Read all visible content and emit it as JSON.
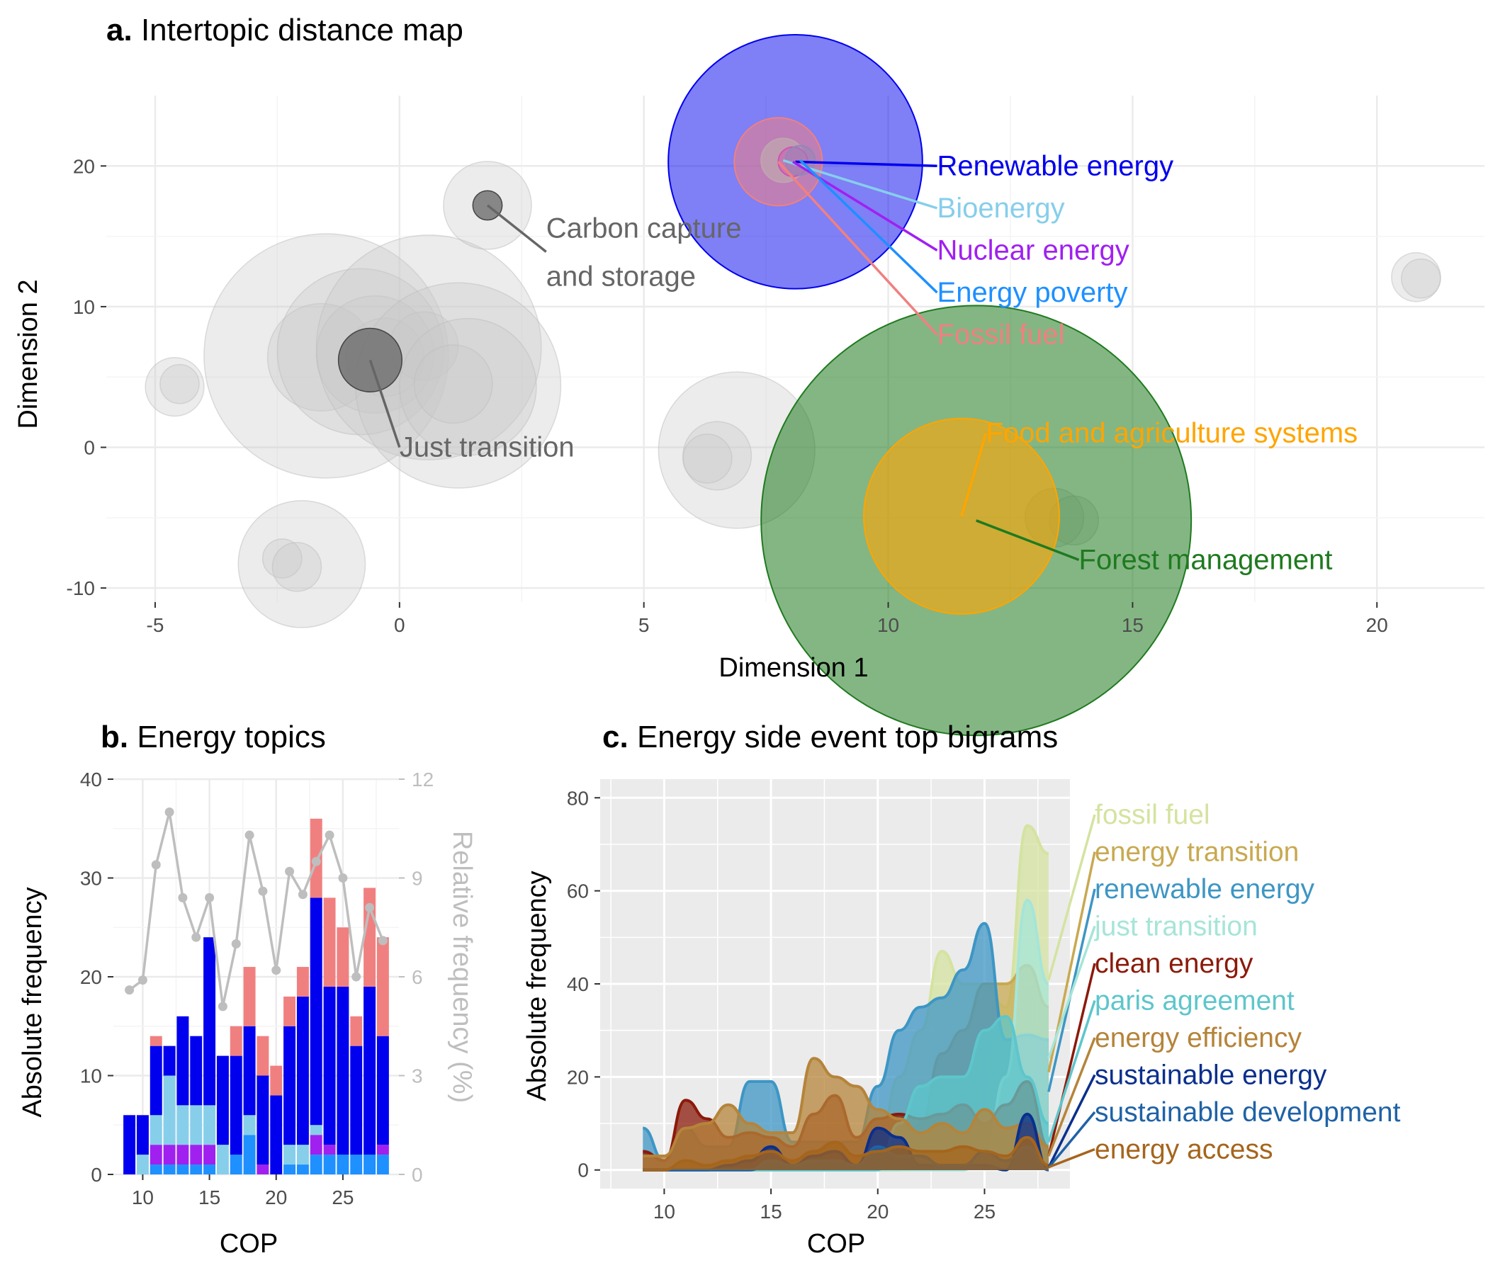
{
  "chart_data": [
    {
      "type": "scatter",
      "panel_label": "a.",
      "title": "Intertopic distance map",
      "xlabel": "Dimension 1",
      "ylabel": "Dimension 2",
      "xlim": [
        -6.0,
        22.2
      ],
      "ylim": [
        -11.0,
        25.0
      ],
      "xticks": [
        -5,
        0,
        5,
        10,
        15,
        20
      ],
      "yticks": [
        -10,
        0,
        10,
        20
      ],
      "xtick_labels": [
        "-5",
        "0",
        "5",
        "10",
        "15",
        "20"
      ],
      "ytick_labels": [
        "-10",
        "0",
        "10",
        "20"
      ],
      "grid": true,
      "background_bubbles": [
        {
          "x": -1.5,
          "y": 6.5,
          "r": 2.5
        },
        {
          "x": -1.6,
          "y": 6.4,
          "r": 1.1
        },
        {
          "x": -0.8,
          "y": 6.8,
          "r": 1.7
        },
        {
          "x": -0.5,
          "y": 6.6,
          "r": 1.2
        },
        {
          "x": -0.3,
          "y": 6.4,
          "r": 0.8
        },
        {
          "x": 0.6,
          "y": 7.1,
          "r": 2.3
        },
        {
          "x": 0.5,
          "y": 7.2,
          "r": 0.7
        },
        {
          "x": 1.2,
          "y": 4.4,
          "r": 2.1
        },
        {
          "x": 1.4,
          "y": 4.3,
          "r": 1.4
        },
        {
          "x": 1.1,
          "y": 4.5,
          "r": 0.8
        },
        {
          "x": -4.6,
          "y": 4.3,
          "r": 0.6
        },
        {
          "x": -4.5,
          "y": 4.5,
          "r": 0.4
        },
        {
          "x": -2.0,
          "y": -8.3,
          "r": 1.3
        },
        {
          "x": -2.4,
          "y": -7.9,
          "r": 0.4
        },
        {
          "x": -2.1,
          "y": -8.5,
          "r": 0.5
        },
        {
          "x": 6.9,
          "y": -0.2,
          "r": 1.6
        },
        {
          "x": 6.5,
          "y": -0.6,
          "r": 0.7
        },
        {
          "x": 6.3,
          "y": -0.8,
          "r": 0.5
        },
        {
          "x": 13.4,
          "y": -5.0,
          "r": 0.6
        },
        {
          "x": 13.8,
          "y": -5.2,
          "r": 0.5
        },
        {
          "x": 20.8,
          "y": 12.1,
          "r": 0.5
        },
        {
          "x": 20.9,
          "y": 12.0,
          "r": 0.4
        },
        {
          "x": 1.8,
          "y": 17.2,
          "r": 0.9
        }
      ],
      "highlighted_topics": [
        {
          "name": "Renewable energy",
          "x": 8.1,
          "y": 20.3,
          "r": 2.6,
          "color": "#0000ee",
          "fill_alpha": 0.5,
          "label_x": 11.0,
          "label_y": 20.0
        },
        {
          "name": "Bioenergy",
          "x": 7.85,
          "y": 20.4,
          "r": 0.45,
          "color": "#87ceeb",
          "fill_alpha": 0.8,
          "label_x": 11.0,
          "label_y": 17.0
        },
        {
          "name": "Nuclear energy",
          "x": 8.05,
          "y": 20.3,
          "r": 0.3,
          "color": "#a020f0",
          "fill_alpha": 0.5,
          "label_x": 11.0,
          "label_y": 14.0
        },
        {
          "name": "Energy poverty",
          "x": 8.2,
          "y": 20.4,
          "r": 0.3,
          "color": "#1e90ff",
          "fill_alpha": 0.5,
          "label_x": 11.0,
          "label_y": 11.0
        },
        {
          "name": "Fossil fuel",
          "x": 7.75,
          "y": 20.3,
          "r": 0.9,
          "color": "#f08080",
          "fill_alpha": 0.55,
          "label_x": 11.0,
          "label_y": 8.0
        },
        {
          "name": "Forest management",
          "x": 11.8,
          "y": -5.2,
          "r": 4.4,
          "color": "#1f7a1f",
          "fill_alpha": 0.55,
          "label_x": 13.9,
          "label_y": -8.0
        },
        {
          "name": "Food and agriculture systems",
          "x": 11.5,
          "y": -4.9,
          "r": 2.0,
          "color": "#ffa500",
          "fill_alpha": 0.6,
          "label_x": 12.0,
          "label_y": 1.0
        }
      ],
      "labeled_gray_topics": [
        {
          "name": "Carbon capture\nand storage",
          "x": 1.8,
          "y": 17.2,
          "r": 0.3,
          "color": "#666666",
          "label_x": 3.0,
          "label_y": 13.9
        },
        {
          "name": "Just transition",
          "x": -0.6,
          "y": 6.2,
          "r": 0.65,
          "color": "#666666",
          "label_x": 0.0,
          "label_y": 0.0
        }
      ]
    },
    {
      "type": "bar",
      "panel_label": "b.",
      "title": "Energy topics",
      "xlabel": "COP",
      "ylabel": "Absolute frequency",
      "y2label": "Relative frequency (%)",
      "x": [
        9,
        10,
        11,
        12,
        13,
        14,
        15,
        16,
        17,
        18,
        19,
        20,
        21,
        22,
        23,
        24,
        25,
        26,
        27,
        28
      ],
      "xlim": [
        7.8,
        29.2
      ],
      "ylim": [
        0,
        40
      ],
      "y2lim": [
        0,
        12
      ],
      "xticks": [
        10,
        15,
        20,
        25
      ],
      "xtick_labels": [
        "10",
        "15",
        "20",
        "25"
      ],
      "yticks": [
        0,
        10,
        20,
        30,
        40
      ],
      "ytick_labels": [
        "0",
        "10",
        "20",
        "30",
        "40"
      ],
      "y2ticks": [
        0,
        3,
        6,
        9,
        12
      ],
      "y2tick_labels": [
        "0",
        "3",
        "6",
        "9",
        "12"
      ],
      "stack_order": [
        "Energy poverty",
        "Nuclear energy",
        "Bioenergy",
        "Renewable energy",
        "Fossil fuel"
      ],
      "series": [
        {
          "name": "Energy poverty",
          "color": "#1e90ff",
          "values": [
            0,
            0,
            1,
            1,
            1,
            1,
            1,
            0,
            2,
            4,
            0,
            0,
            1,
            1,
            2,
            2,
            2,
            2,
            2,
            2
          ]
        },
        {
          "name": "Nuclear energy",
          "color": "#a020f0",
          "values": [
            0,
            0,
            2,
            2,
            2,
            2,
            2,
            0,
            0,
            0,
            1,
            0,
            0,
            0,
            2,
            1,
            0,
            0,
            0,
            1
          ]
        },
        {
          "name": "Bioenergy",
          "color": "#87ceeb",
          "values": [
            0,
            2,
            3,
            7,
            4,
            4,
            4,
            3,
            0,
            2,
            0,
            0,
            2,
            2,
            1,
            0,
            0,
            0,
            0,
            0
          ]
        },
        {
          "name": "Renewable energy",
          "color": "#0000ee",
          "values": [
            6,
            4,
            7,
            3,
            9,
            7,
            17,
            9,
            10,
            9,
            9,
            8,
            12,
            15,
            23,
            16,
            17,
            11,
            17,
            11
          ]
        },
        {
          "name": "Fossil fuel",
          "color": "#f08080",
          "values": [
            0,
            0,
            1,
            0,
            0,
            0,
            0,
            0,
            3,
            6,
            4,
            3,
            3,
            3,
            8,
            9,
            6,
            3,
            10,
            10
          ]
        }
      ],
      "relative_frequency": {
        "color": "#bebebe",
        "values": [
          5.6,
          5.9,
          9.4,
          11.0,
          8.4,
          7.2,
          8.4,
          5.1,
          7.0,
          10.3,
          8.6,
          6.2,
          9.2,
          8.5,
          9.5,
          10.3,
          9.0,
          6.0,
          8.1,
          7.1
        ]
      }
    },
    {
      "type": "area",
      "panel_label": "c.",
      "title": "Energy side event top bigrams",
      "xlabel": "COP",
      "ylabel": "Absolute frequency",
      "x": [
        9,
        10,
        11,
        12,
        13,
        14,
        15,
        16,
        17,
        18,
        19,
        20,
        21,
        22,
        23,
        24,
        25,
        26,
        27,
        28
      ],
      "xlim": [
        7.0,
        29.0
      ],
      "ylim": [
        -4,
        84
      ],
      "xticks": [
        10,
        15,
        20,
        25
      ],
      "xtick_labels": [
        "10",
        "15",
        "20",
        "25"
      ],
      "yticks": [
        0,
        20,
        40,
        60,
        80
      ],
      "ytick_labels": [
        "0",
        "20",
        "40",
        "60",
        "80"
      ],
      "background": "#ebebeb",
      "series": [
        {
          "name": "fossil fuel",
          "color": "#d4e3a0",
          "values": [
            0,
            0,
            0,
            0,
            0,
            0,
            0,
            0,
            0,
            0,
            0,
            4,
            20,
            30,
            47,
            40,
            40,
            35,
            74,
            68
          ]
        },
        {
          "name": "energy transition",
          "color": "#c8a951",
          "values": [
            0,
            0,
            0,
            0,
            0,
            0,
            0,
            0,
            0,
            0,
            0,
            0,
            0,
            10,
            25,
            30,
            40,
            40,
            44,
            35
          ]
        },
        {
          "name": "renewable energy",
          "color": "#3d96c4",
          "values": [
            9,
            2,
            9,
            5,
            5,
            19,
            19,
            6,
            6,
            6,
            6,
            18,
            30,
            35,
            37,
            43,
            53,
            28,
            29,
            28
          ]
        },
        {
          "name": "just transition",
          "color": "#a6e5d8",
          "values": [
            0,
            0,
            0,
            0,
            0,
            0,
            0,
            0,
            0,
            0,
            0,
            0,
            0,
            0,
            0,
            0,
            3,
            20,
            58,
            40
          ]
        },
        {
          "name": "clean energy",
          "color": "#8b1a0a",
          "values": [
            4,
            2,
            15,
            11,
            7,
            8,
            7,
            5,
            12,
            16,
            7,
            11,
            12,
            11,
            12,
            14,
            10,
            14,
            19,
            5
          ]
        },
        {
          "name": "paris agreement",
          "color": "#5ec6cb",
          "values": [
            0,
            0,
            0,
            0,
            0,
            0,
            0,
            0,
            0,
            0,
            0,
            0,
            10,
            18,
            20,
            20,
            30,
            33,
            20,
            10
          ]
        },
        {
          "name": "energy efficiency",
          "color": "#b5843a",
          "values": [
            3,
            3,
            9,
            10,
            14,
            10,
            8,
            8,
            24,
            20,
            18,
            13,
            11,
            8,
            10,
            8,
            13,
            9,
            10,
            5
          ]
        },
        {
          "name": "sustainable energy",
          "color": "#0a2f8c",
          "values": [
            0,
            0,
            0,
            0,
            1,
            2,
            5,
            1,
            3,
            4,
            1,
            9,
            7,
            1,
            1,
            1,
            1,
            0,
            12,
            0
          ]
        },
        {
          "name": "sustainable development",
          "color": "#1f62a6",
          "values": [
            0,
            0,
            0,
            0,
            0,
            0,
            2,
            1,
            2,
            2,
            1,
            5,
            3,
            3,
            1,
            1,
            4,
            2,
            5,
            0
          ]
        },
        {
          "name": "energy access",
          "color": "#a5651c",
          "values": [
            0,
            0,
            2,
            1,
            2,
            3,
            4,
            2,
            4,
            6,
            3,
            4,
            5,
            4,
            4,
            5,
            4,
            3,
            7,
            1
          ]
        }
      ]
    }
  ]
}
